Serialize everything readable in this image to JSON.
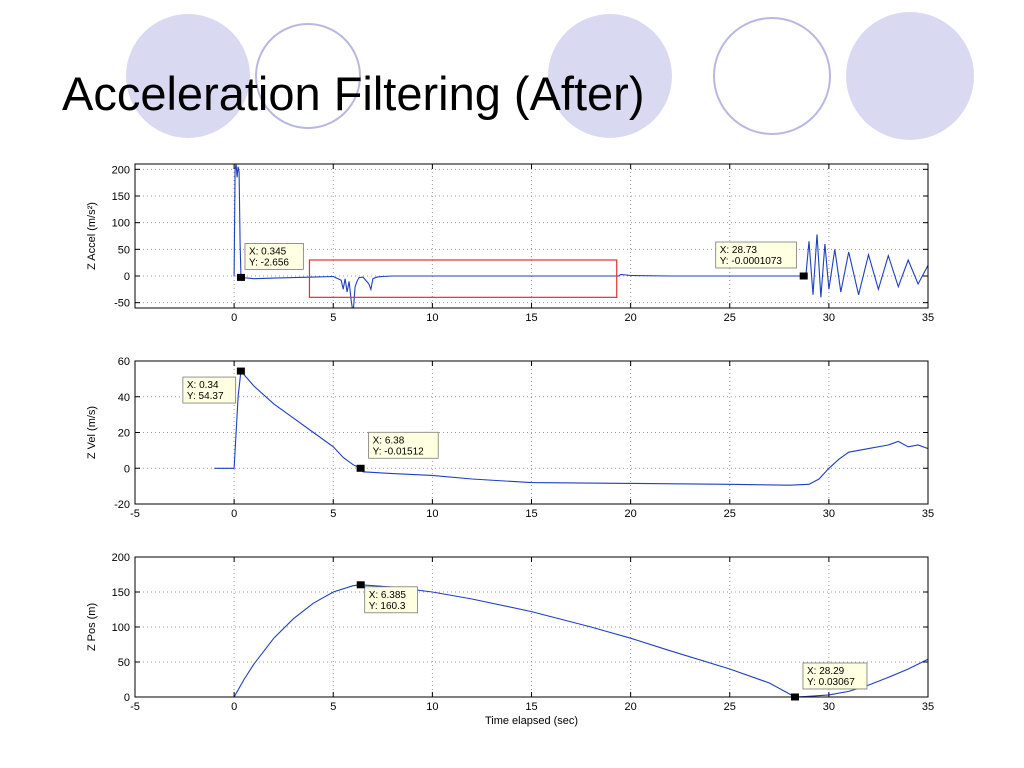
{
  "slide": {
    "title": "Acceleration Filtering (After)",
    "circle_fill": "#d9d9f2",
    "circle_stroke": "#b8b8e0"
  },
  "colors": {
    "series": "#1f3fbf",
    "series_light": "#7f9fdf",
    "highlight_box": "#e03030",
    "grid": "#9a9a9a",
    "tip_fill": "#ffffe1"
  },
  "chart_data": [
    {
      "type": "line",
      "ylabel": "Z Accel (m/s²)",
      "xlabel": "",
      "xlim": [
        -5,
        35
      ],
      "ylim": [
        -60,
        210
      ],
      "x_ticks": [
        0,
        5,
        10,
        15,
        20,
        25,
        30,
        35
      ],
      "y_ticks": [
        -50,
        0,
        50,
        100,
        150,
        200
      ],
      "grid": true,
      "series": [
        {
          "x": [
            0.0,
            0.05,
            0.1,
            0.15,
            0.2,
            0.25,
            0.3,
            0.345,
            1.0,
            2.0,
            3.0,
            4.0,
            5.0,
            5.4,
            5.5,
            5.6,
            5.7,
            5.8,
            5.9,
            6.0,
            6.1,
            6.2,
            6.3,
            6.5,
            6.8,
            6.9,
            7.0,
            7.2,
            7.5,
            8.0,
            10.0,
            12.0,
            15.0,
            18.0,
            19.4,
            19.5,
            20.0,
            22.0,
            25.0,
            28.0,
            28.73,
            28.85,
            29.0,
            29.2,
            29.4,
            29.6,
            29.8,
            30.0,
            30.3,
            30.6,
            31.0,
            31.5,
            32.0,
            32.5,
            33.0,
            33.5,
            34.0,
            34.5,
            35.0
          ],
          "y": [
            0,
            200,
            210,
            185,
            205,
            195,
            60,
            -2.656,
            -5,
            -4,
            -3,
            -2,
            -1,
            -8,
            -25,
            -5,
            -30,
            -10,
            -45,
            -70,
            -20,
            -10,
            -3,
            -2,
            -15,
            -25,
            -5,
            -2,
            -1,
            0,
            0,
            0,
            0,
            0,
            0,
            3,
            1,
            0,
            0,
            0,
            -0.0001073,
            5,
            65,
            -35,
            78,
            -40,
            60,
            -25,
            50,
            -30,
            45,
            -35,
            40,
            -25,
            38,
            -20,
            30,
            -15,
            20
          ]
        }
      ],
      "highlight_region": {
        "x": [
          3.8,
          19.3
        ],
        "y": [
          -40,
          30
        ]
      },
      "datatips": [
        {
          "x": 0.345,
          "y": -2.656,
          "label_x": "X: 0.345",
          "label_y": "Y: -2.656"
        },
        {
          "x": 28.73,
          "y": -0.0001073,
          "label_x": "X: 28.73",
          "label_y": "Y: -0.0001073"
        }
      ]
    },
    {
      "type": "line",
      "ylabel": "Z Vel (m/s)",
      "xlabel": "",
      "xlim": [
        -5,
        35
      ],
      "ylim": [
        -20,
        60
      ],
      "x_ticks": [
        -5,
        0,
        5,
        10,
        15,
        20,
        25,
        30,
        35
      ],
      "y_ticks": [
        -20,
        0,
        20,
        40,
        60
      ],
      "grid": true,
      "series": [
        {
          "x": [
            -1.0,
            0.0,
            0.1,
            0.2,
            0.34,
            1.0,
            2.0,
            3.0,
            4.0,
            5.0,
            5.5,
            6.0,
            6.38,
            6.5,
            8.0,
            10.0,
            12.0,
            15.0,
            20.0,
            25.0,
            28.0,
            29.0,
            29.5,
            30.0,
            30.5,
            31.0,
            32.0,
            33.0,
            33.5,
            34.0,
            34.5,
            35.0
          ],
          "y": [
            0,
            0,
            20,
            40,
            54.37,
            46,
            36,
            28,
            20,
            12,
            6,
            2,
            -0.01512,
            -2,
            -3,
            -4,
            -6,
            -8,
            -8.5,
            -9,
            -9.5,
            -9,
            -6,
            0,
            5,
            9,
            11,
            13,
            15,
            12,
            13,
            11
          ]
        }
      ],
      "datatips": [
        {
          "x": 0.34,
          "y": 54.37,
          "label_x": "X: 0.34",
          "label_y": "Y: 54.37"
        },
        {
          "x": 6.38,
          "y": -0.01512,
          "label_x": "X: 6.38",
          "label_y": "Y: -0.01512"
        }
      ]
    },
    {
      "type": "line",
      "ylabel": "Z Pos (m)",
      "xlabel": "Time elapsed (sec)",
      "xlim": [
        -5,
        35
      ],
      "ylim": [
        0,
        200
      ],
      "x_ticks": [
        -5,
        0,
        5,
        10,
        15,
        20,
        25,
        30,
        35
      ],
      "y_ticks": [
        0,
        50,
        100,
        150,
        200
      ],
      "grid": true,
      "series": [
        {
          "x": [
            0.0,
            0.5,
            1.0,
            2.0,
            3.0,
            4.0,
            5.0,
            6.0,
            6.385,
            7.0,
            8.0,
            10.0,
            12.0,
            15.0,
            18.0,
            20.0,
            22.0,
            25.0,
            27.0,
            28.29,
            29.0,
            30.0,
            31.0,
            32.0,
            33.0,
            34.0,
            35.0
          ],
          "y": [
            0,
            25,
            47,
            84,
            112,
            134,
            150,
            159,
            160.3,
            159,
            157,
            150,
            140,
            122,
            100,
            84,
            66,
            40,
            20,
            0.03067,
            1,
            3,
            8,
            17,
            28,
            40,
            54
          ]
        }
      ],
      "datatips": [
        {
          "x": 6.385,
          "y": 160.3,
          "label_x": "X: 6.385",
          "label_y": "Y: 160.3"
        },
        {
          "x": 28.29,
          "y": 0.03067,
          "label_x": "X: 28.29",
          "label_y": "Y: 0.03067"
        }
      ]
    }
  ]
}
